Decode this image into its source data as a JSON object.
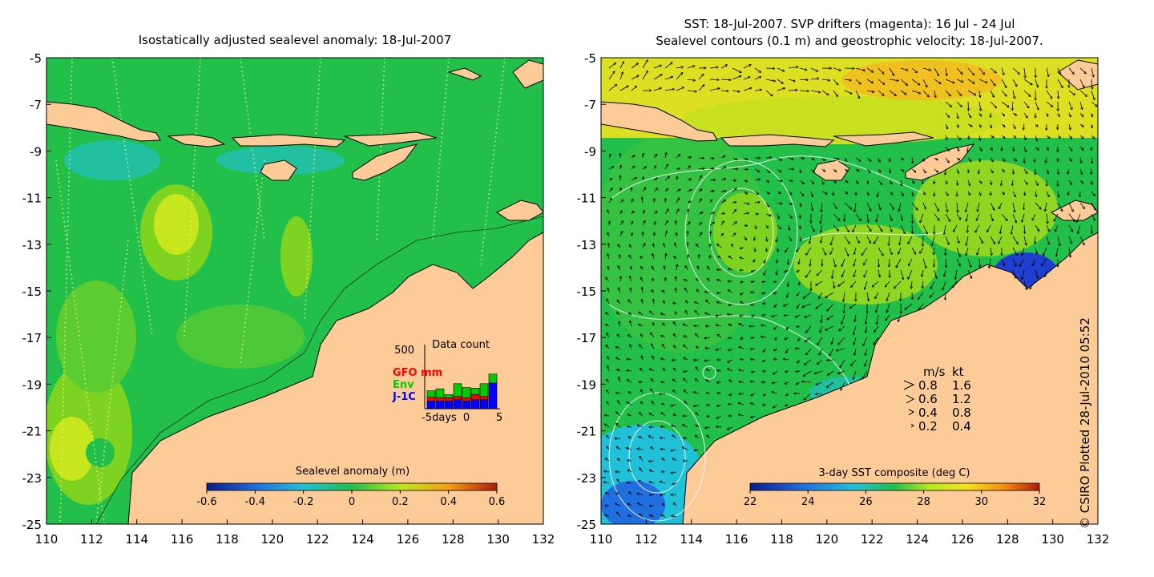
{
  "left_panel": {
    "title": "Isostatically adjusted sealevel anomaly: 18-Jul-2007",
    "x_ticks": [
      "110",
      "112",
      "114",
      "116",
      "118",
      "120",
      "122",
      "124",
      "126",
      "128",
      "130",
      "132"
    ],
    "y_ticks": [
      "-5",
      "-7",
      "-9",
      "-11",
      "-13",
      "-15",
      "-17",
      "-19",
      "-21",
      "-23",
      "-25"
    ],
    "colorbar": {
      "title": "Sealevel anomaly (m)",
      "ticks": [
        "-0.6",
        "-0.4",
        "-0.2",
        "0",
        "0.2",
        "0.4",
        "0.6"
      ]
    },
    "inset": {
      "title": "Data count",
      "ymax_label": "500",
      "series": [
        {
          "name": "GFO mm",
          "color": "#ff0000"
        },
        {
          "name": "Env",
          "color": "#00cc00"
        },
        {
          "name": "J-1C",
          "color": "#0000ff"
        }
      ],
      "x_ticks": [
        "-5days",
        "0",
        "5"
      ],
      "bars": [
        {
          "blue": 0.12,
          "red": 0.06,
          "green": 0.1
        },
        {
          "blue": 0.12,
          "red": 0.05,
          "green": 0.14
        },
        {
          "blue": 0.12,
          "red": 0.05,
          "green": 0.05
        },
        {
          "blue": 0.14,
          "red": 0.05,
          "green": 0.2
        },
        {
          "blue": 0.12,
          "red": 0.05,
          "green": 0.16
        },
        {
          "blue": 0.14,
          "red": 0.08,
          "green": 0.1
        },
        {
          "blue": 0.14,
          "red": 0.05,
          "green": 0.2
        },
        {
          "blue": 0.4,
          "red": 0.0,
          "green": 0.14
        }
      ]
    }
  },
  "right_panel": {
    "title_line1": "SST: 18-Jul-2007. SVP drifters (magenta): 16 Jul - 24 Jul",
    "title_line2": "Sealevel contours (0.1 m) and geostrophic velocity: 18-Jul-2007.",
    "x_ticks": [
      "110",
      "112",
      "114",
      "116",
      "118",
      "120",
      "122",
      "124",
      "126",
      "128",
      "130",
      "132"
    ],
    "y_ticks": [
      "-5",
      "-7",
      "-9",
      "-11",
      "-13",
      "-15",
      "-17",
      "-19",
      "-21",
      "-23",
      "-25"
    ],
    "colorbar": {
      "title": "3-day SST composite (deg C)",
      "ticks": [
        "22",
        "24",
        "26",
        "28",
        "30",
        "32"
      ]
    },
    "speed_legend": {
      "header_ms": "m/s",
      "header_kt": "kt",
      "rows": [
        {
          "ms": "0.8",
          "kt": "1.6"
        },
        {
          "ms": "0.6",
          "kt": "1.2"
        },
        {
          "ms": "0.4",
          "kt": "0.8"
        },
        {
          "ms": "0.2",
          "kt": "0.4"
        }
      ]
    }
  },
  "credit": "© CSIRO Plotted 28-Jul-2010 05:52",
  "colors": {
    "land": "#fccb98",
    "ocean_main": "#22c04a",
    "ocean_alt": "#7ed321",
    "sst_warm": "#f2e21e",
    "sst_cold": "#1f3fd0"
  }
}
